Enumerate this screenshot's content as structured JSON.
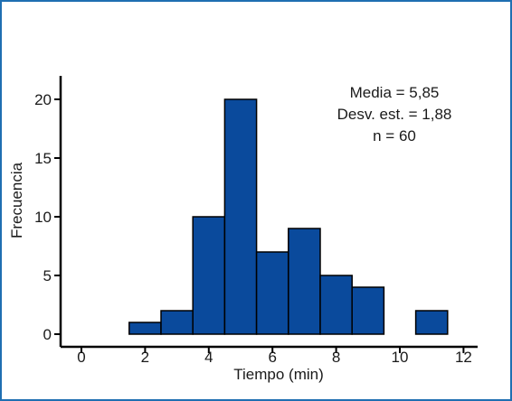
{
  "chart_data": {
    "type": "bar",
    "subtype": "histogram",
    "xlabel": "Tiempo (min)",
    "ylabel": "Frecuencia",
    "xlim": [
      -0.75,
      12.25
    ],
    "ylim": [
      0,
      22
    ],
    "x_ticks": [
      0,
      2,
      4,
      6,
      8,
      10,
      12
    ],
    "y_ticks": [
      0,
      5,
      10,
      15,
      20
    ],
    "bin_width": 1,
    "bins": [
      {
        "start": 1.5,
        "end": 2.5,
        "value": 1
      },
      {
        "start": 2.5,
        "end": 3.5,
        "value": 2
      },
      {
        "start": 3.5,
        "end": 4.5,
        "value": 10
      },
      {
        "start": 4.5,
        "end": 5.5,
        "value": 20
      },
      {
        "start": 5.5,
        "end": 6.5,
        "value": 7
      },
      {
        "start": 6.5,
        "end": 7.5,
        "value": 9
      },
      {
        "start": 7.5,
        "end": 8.5,
        "value": 5
      },
      {
        "start": 8.5,
        "end": 9.5,
        "value": 4
      },
      {
        "start": 10.5,
        "end": 11.5,
        "value": 2
      }
    ],
    "bar_color": "#0a4a9c",
    "frame_color": "#1f6fb2",
    "grid": false,
    "annotation": {
      "line1": "Media = 5,85",
      "line2": "Desv. est. = 1,88",
      "line3": "n = 60"
    }
  }
}
